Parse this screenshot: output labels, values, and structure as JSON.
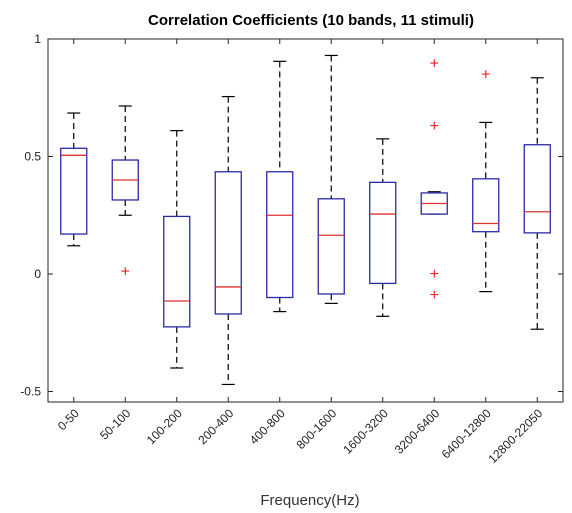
{
  "chart_data": {
    "type": "boxplot",
    "title": "Correlation Coefficients (10 bands, 11 stimuli)",
    "xlabel": "Frequency(Hz)",
    "ylabel": "",
    "ylim": [
      -0.55,
      1.0
    ],
    "yticks": [
      -0.5,
      0,
      0.5,
      1
    ],
    "ytick_labels": [
      "-0.5",
      "0",
      "0.5",
      "1"
    ],
    "grid": false,
    "categories": [
      "0-50",
      "50-100",
      "100-200",
      "200-400",
      "400-800",
      "800-1600",
      "1600-3200",
      "3200-6400",
      "6400-12800",
      "12800-22050"
    ],
    "boxes": [
      {
        "whisker_low": 0.12,
        "q1": 0.17,
        "median": 0.505,
        "q3": 0.535,
        "whisker_high": 0.685,
        "outliers": []
      },
      {
        "whisker_low": 0.25,
        "q1": 0.315,
        "median": 0.4,
        "q3": 0.485,
        "whisker_high": 0.715,
        "outliers": [
          0.01
        ]
      },
      {
        "whisker_low": -0.4,
        "q1": -0.225,
        "median": -0.115,
        "q3": 0.245,
        "whisker_high": 0.61,
        "outliers": []
      },
      {
        "whisker_low": -0.47,
        "q1": -0.17,
        "median": -0.055,
        "q3": 0.435,
        "whisker_high": 0.755,
        "outliers": []
      },
      {
        "whisker_low": -0.16,
        "q1": -0.1,
        "median": 0.25,
        "q3": 0.435,
        "whisker_high": 0.905,
        "outliers": []
      },
      {
        "whisker_low": -0.125,
        "q1": -0.085,
        "median": 0.165,
        "q3": 0.32,
        "whisker_high": 0.93,
        "outliers": []
      },
      {
        "whisker_low": -0.18,
        "q1": -0.04,
        "median": 0.255,
        "q3": 0.39,
        "whisker_high": 0.575,
        "outliers": []
      },
      {
        "whisker_low": 0.255,
        "q1": 0.255,
        "median": 0.3,
        "q3": 0.345,
        "whisker_high": 0.35,
        "outliers": [
          0.895,
          0.63,
          0.0,
          -0.09
        ]
      },
      {
        "whisker_low": -0.075,
        "q1": 0.18,
        "median": 0.215,
        "q3": 0.405,
        "whisker_high": 0.645,
        "outliers": [
          0.85
        ]
      },
      {
        "whisker_low": -0.235,
        "q1": 0.175,
        "median": 0.265,
        "q3": 0.55,
        "whisker_high": 0.835,
        "outliers": []
      }
    ],
    "colors": {
      "box": "#2a2aa8",
      "median": "#e03030",
      "whisker": "#000000",
      "outlier": "#ee2222",
      "axis": "#262626"
    },
    "outlier_marker": "+"
  }
}
